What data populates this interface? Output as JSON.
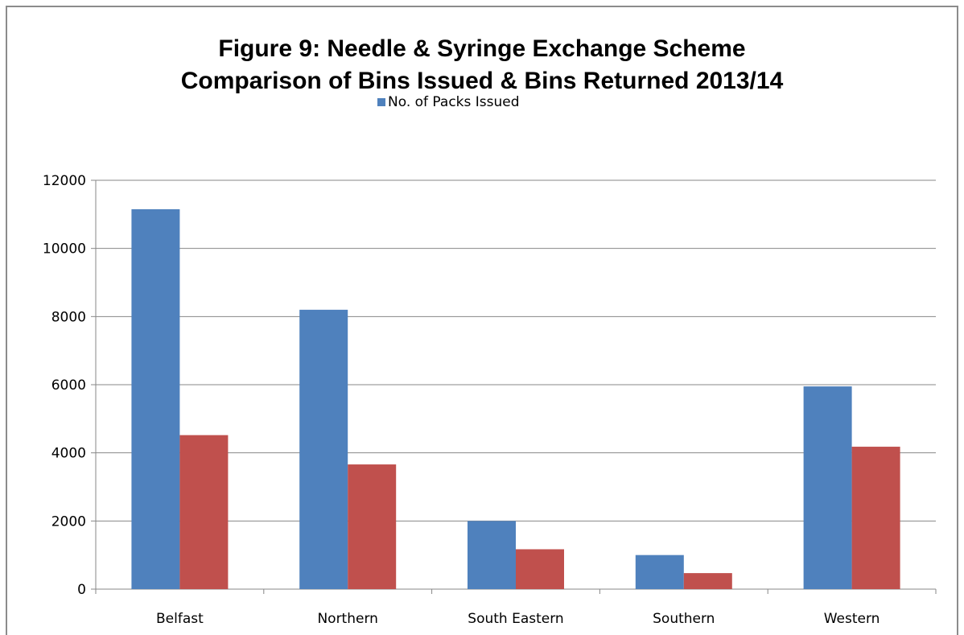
{
  "chart_data": {
    "type": "bar",
    "title_line1": "Figure 9: Needle & Syringe Exchange Scheme",
    "title_line2": "Comparison of Bins Issued & Bins Returned 2013/14",
    "categories": [
      "Belfast",
      "Northern",
      "South Eastern",
      "Southern",
      "Western"
    ],
    "series": [
      {
        "name": "No. of Packs Issued",
        "color": "#4f81bd",
        "values": [
          11150,
          8200,
          2000,
          1000,
          5950
        ]
      },
      {
        "color": "#c0504d",
        "values": [
          4520,
          3660,
          1170,
          470,
          4180
        ]
      }
    ],
    "ylim": [
      0,
      12000
    ],
    "yticks": [
      "0",
      "2000",
      "4000",
      "6000",
      "8000",
      "10000",
      "12000"
    ],
    "grid": true,
    "legend_position": "top"
  }
}
